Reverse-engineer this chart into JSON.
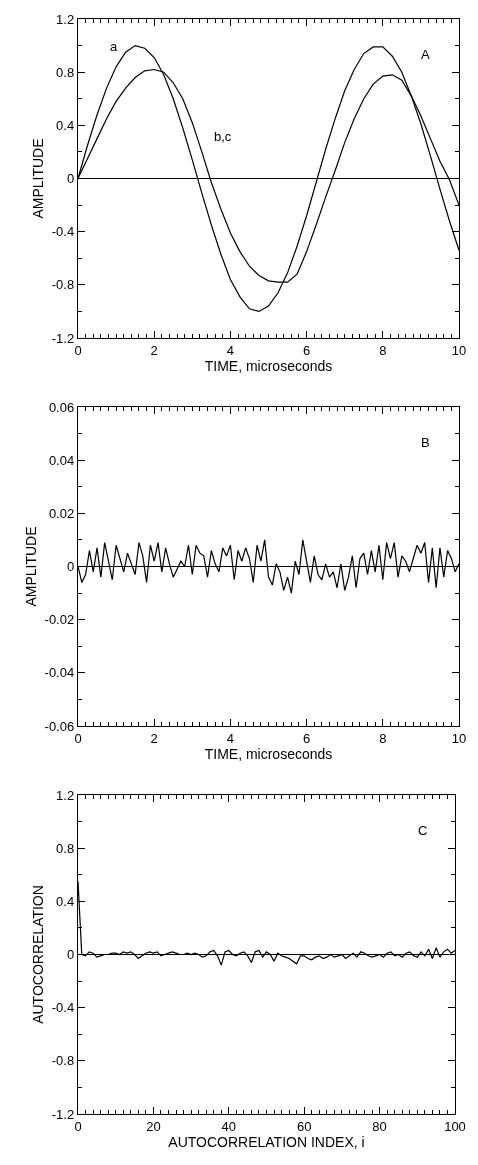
{
  "chart_data": [
    {
      "type": "line",
      "xlabel": "TIME, microseconds",
      "ylabel": "AMPLITUDE",
      "xlim": [
        0,
        10
      ],
      "ylim": [
        -1.2,
        1.2
      ],
      "xticks": [
        0,
        2,
        4,
        6,
        8,
        10
      ],
      "yticks": [
        -1.2,
        -0.8,
        -0.4,
        0.0,
        0.4,
        0.8,
        1.2
      ],
      "grid": false,
      "annotations": [
        "A",
        {
          "text": "a",
          "x": 1.25,
          "y": 0.95
        },
        {
          "text": "b,c",
          "x": 3.25,
          "y": 0.2
        }
      ],
      "ref_lines": [
        {
          "axis": "y",
          "value": 0
        }
      ],
      "x": [
        0,
        0.25,
        0.5,
        0.75,
        1,
        1.25,
        1.5,
        1.75,
        2,
        2.25,
        2.5,
        2.75,
        3,
        3.25,
        3.5,
        3.75,
        4,
        4.25,
        4.5,
        4.75,
        5,
        5.25,
        5.5,
        5.75,
        6,
        6.25,
        6.5,
        6.75,
        7,
        7.25,
        7.5,
        7.75,
        8,
        8.25,
        8.5,
        8.75,
        9,
        9.25,
        9.5,
        9.75,
        10
      ],
      "series": [
        {
          "color": "#000000",
          "values": [
            0,
            0.25,
            0.48,
            0.68,
            0.84,
            0.95,
            1.0,
            0.98,
            0.91,
            0.78,
            0.6,
            0.38,
            0.14,
            -0.11,
            -0.35,
            -0.57,
            -0.76,
            -0.89,
            -0.98,
            -1.0,
            -0.96,
            -0.86,
            -0.71,
            -0.51,
            -0.28,
            -0.03,
            0.22,
            0.45,
            0.66,
            0.82,
            0.94,
            0.99,
            0.99,
            0.92,
            0.8,
            0.62,
            0.41,
            0.17,
            -0.08,
            -0.32,
            -0.54
          ]
        },
        {
          "color": "#000000",
          "values": [
            0,
            0.15,
            0.3,
            0.45,
            0.58,
            0.68,
            0.76,
            0.81,
            0.82,
            0.8,
            0.72,
            0.6,
            0.42,
            0.2,
            -0.03,
            -0.23,
            -0.41,
            -0.55,
            -0.66,
            -0.73,
            -0.77,
            -0.78,
            -0.78,
            -0.72,
            -0.55,
            -0.35,
            -0.14,
            0.06,
            0.27,
            0.45,
            0.6,
            0.71,
            0.77,
            0.78,
            0.74,
            0.62,
            0.47,
            0.3,
            0.13,
            -0.01,
            -0.2
          ]
        }
      ]
    },
    {
      "type": "line",
      "xlabel": "TIME, microseconds",
      "ylabel": "AMPLITUDE",
      "xlim": [
        0,
        10
      ],
      "ylim": [
        -0.06,
        0.06
      ],
      "xticks": [
        0,
        2,
        4,
        6,
        8,
        10
      ],
      "yticks": [
        -0.06,
        -0.04,
        -0.02,
        0.0,
        0.02,
        0.04,
        0.06
      ],
      "grid": false,
      "annotations": [
        "B"
      ],
      "ref_lines": [
        {
          "axis": "y",
          "value": 0
        }
      ],
      "x": [
        0,
        0.1,
        0.2,
        0.3,
        0.4,
        0.5,
        0.6,
        0.7,
        0.8,
        0.9,
        1,
        1.1,
        1.2,
        1.3,
        1.4,
        1.5,
        1.6,
        1.7,
        1.8,
        1.9,
        2,
        2.1,
        2.2,
        2.3,
        2.4,
        2.5,
        2.6,
        2.7,
        2.8,
        2.9,
        3,
        3.1,
        3.2,
        3.3,
        3.4,
        3.5,
        3.6,
        3.7,
        3.8,
        3.9,
        4,
        4.1,
        4.2,
        4.3,
        4.4,
        4.5,
        4.6,
        4.7,
        4.8,
        4.9,
        5,
        5.1,
        5.2,
        5.3,
        5.4,
        5.5,
        5.6,
        5.7,
        5.8,
        5.9,
        6,
        6.1,
        6.2,
        6.3,
        6.4,
        6.5,
        6.6,
        6.7,
        6.8,
        6.9,
        7,
        7.1,
        7.2,
        7.3,
        7.4,
        7.5,
        7.6,
        7.7,
        7.8,
        7.9,
        8,
        8.1,
        8.2,
        8.3,
        8.4,
        8.5,
        8.6,
        8.7,
        8.8,
        8.9,
        9,
        9.1,
        9.2,
        9.3,
        9.4,
        9.5,
        9.6,
        9.7,
        9.8,
        9.9,
        10
      ],
      "series": [
        {
          "color": "#000000",
          "values": [
            0,
            -0.006,
            -0.003,
            0.006,
            -0.002,
            0.007,
            -0.004,
            0.009,
            0.002,
            -0.005,
            0.008,
            0.003,
            -0.002,
            0.005,
            0.001,
            -0.003,
            0.009,
            0.004,
            -0.006,
            0.008,
            0.002,
            0.009,
            -0.002,
            0.007,
            0.001,
            -0.004,
            -0.001,
            0.002,
            0,
            0.008,
            -0.003,
            0.008,
            0.005,
            0.004,
            -0.004,
            0.006,
            0.001,
            -0.002,
            0.007,
            0.004,
            0.008,
            -0.005,
            0.006,
            0.002,
            0.007,
            0.003,
            -0.006,
            0.008,
            0.002,
            0.01,
            -0.004,
            -0.007,
            0.001,
            -0.002,
            -0.009,
            -0.004,
            -0.01,
            0.002,
            -0.003,
            0.01,
            0.002,
            -0.006,
            0.004,
            -0.003,
            -0.005,
            0.001,
            -0.004,
            -0.002,
            -0.008,
            0.001,
            -0.009,
            -0.004,
            0.004,
            -0.008,
            0.003,
            0.005,
            -0.003,
            0.006,
            -0.002,
            0.008,
            -0.005,
            0.009,
            0.003,
            0.009,
            -0.004,
            0.004,
            0.002,
            -0.002,
            0.003,
            0.008,
            0.005,
            0.009,
            -0.006,
            0.007,
            -0.008,
            0.007,
            -0.004,
            0.006,
            0.003,
            -0.002,
            0.001
          ]
        }
      ]
    },
    {
      "type": "line",
      "xlabel": "AUTOCORRELATION INDEX, i",
      "ylabel": "AUTOCORRELATION",
      "xlim": [
        0,
        100
      ],
      "ylim": [
        -1.2,
        1.2
      ],
      "xticks": [
        0,
        20,
        40,
        60,
        80,
        100
      ],
      "yticks": [
        -1.2,
        -0.8,
        -0.4,
        0.0,
        0.4,
        0.8,
        1.2
      ],
      "grid": false,
      "annotations": [
        "C"
      ],
      "ref_lines": [
        {
          "axis": "y",
          "value": 0
        }
      ],
      "x": [
        0,
        1,
        2,
        3,
        4,
        5,
        6,
        7,
        8,
        9,
        10,
        11,
        12,
        13,
        14,
        15,
        16,
        17,
        18,
        19,
        20,
        21,
        22,
        23,
        24,
        25,
        26,
        27,
        28,
        29,
        30,
        31,
        32,
        33,
        34,
        35,
        36,
        37,
        38,
        39,
        40,
        41,
        42,
        43,
        44,
        45,
        46,
        47,
        48,
        49,
        50,
        51,
        52,
        53,
        54,
        55,
        56,
        57,
        58,
        59,
        60,
        61,
        62,
        63,
        64,
        65,
        66,
        67,
        68,
        69,
        70,
        71,
        72,
        73,
        74,
        75,
        76,
        77,
        78,
        79,
        80,
        81,
        82,
        83,
        84,
        85,
        86,
        87,
        88,
        89,
        90,
        91,
        92,
        93,
        94,
        95,
        96,
        97,
        98,
        99,
        100
      ],
      "series": [
        {
          "color": "#000000",
          "values": [
            0.55,
            0,
            -0.01,
            0.02,
            0.01,
            -0.02,
            -0.01,
            0,
            0,
            0.01,
            0.01,
            0,
            0.02,
            0.01,
            0.02,
            0,
            -0.03,
            -0.01,
            0.01,
            0.02,
            0.01,
            0.02,
            -0.01,
            0,
            0.01,
            0.02,
            0.01,
            0,
            0,
            0.01,
            0,
            0.01,
            0,
            -0.02,
            -0.01,
            0.02,
            0.03,
            -0.01,
            -0.08,
            0.02,
            0.03,
            0,
            -0.01,
            0.01,
            0.02,
            -0.01,
            -0.06,
            0.02,
            0.03,
            -0.02,
            0.02,
            0,
            -0.05,
            0.01,
            -0.01,
            -0.02,
            -0.03,
            -0.05,
            -0.07,
            -0.01,
            -0.01,
            -0.03,
            -0.04,
            -0.02,
            -0.01,
            -0.03,
            -0.02,
            0,
            -0.02,
            -0.01,
            0,
            -0.03,
            -0.01,
            0.01,
            -0.02,
            0.02,
            0.01,
            -0.01,
            -0.02,
            -0.01,
            0,
            -0.02,
            0.01,
            0.02,
            -0.01,
            0,
            -0.02,
            0.01,
            0.02,
            -0.01,
            -0.02,
            0.02,
            -0.01,
            0.04,
            -0.03,
            0.05,
            -0.02,
            0.02,
            0.04,
            0.01,
            0.03
          ]
        }
      ]
    }
  ]
}
